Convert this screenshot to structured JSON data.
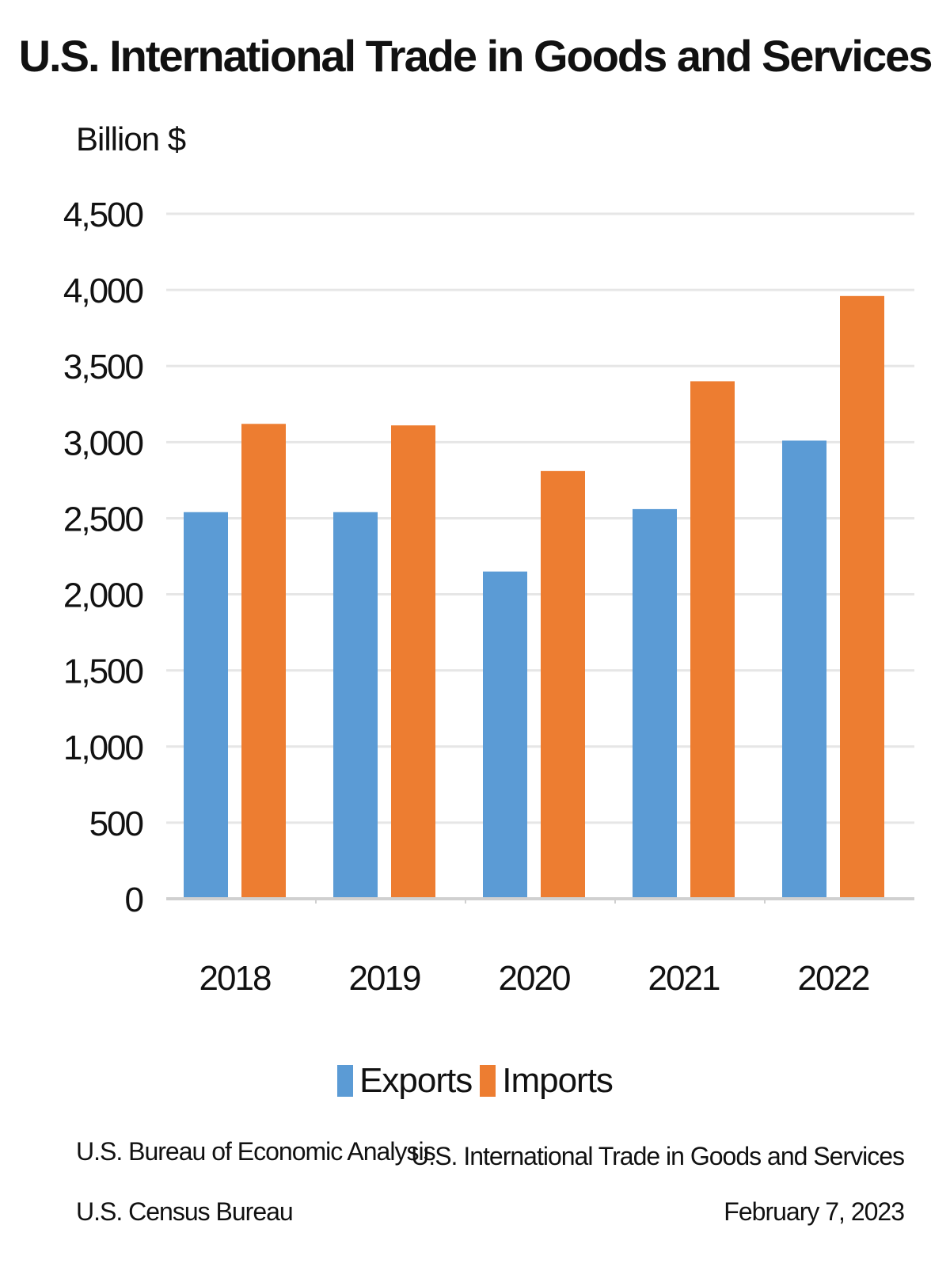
{
  "colors": {
    "exports": "#5b9bd5",
    "imports": "#ed7d31",
    "gridline": "#e6e6e6",
    "axis": "#d0d0d0"
  },
  "footer": {
    "source_1": "U.S. Bureau of Economic Analysis",
    "source_2": "U.S. Census Bureau",
    "release_title": "U.S. International Trade in Goods and Services",
    "release_date": "February 7, 2023"
  },
  "chart_data": {
    "type": "bar",
    "title": "U.S. International Trade in Goods and Services",
    "ylabel": "Billion $",
    "xlabel": "",
    "categories": [
      "2018",
      "2019",
      "2020",
      "2021",
      "2022"
    ],
    "series": [
      {
        "name": "Exports",
        "values": [
          2540,
          2540,
          2150,
          2560,
          3010
        ]
      },
      {
        "name": "Imports",
        "values": [
          3120,
          3110,
          2810,
          3400,
          3960
        ]
      }
    ],
    "ylim": [
      0,
      4500
    ],
    "yticks": [
      0,
      500,
      1000,
      1500,
      2000,
      2500,
      3000,
      3500,
      4000,
      4500
    ],
    "ytick_labels": [
      "0",
      "500",
      "1,000",
      "1,500",
      "2,000",
      "2,500",
      "3,000",
      "3,500",
      "4,000",
      "4,500"
    ],
    "grid": true,
    "legend_position": "bottom"
  }
}
